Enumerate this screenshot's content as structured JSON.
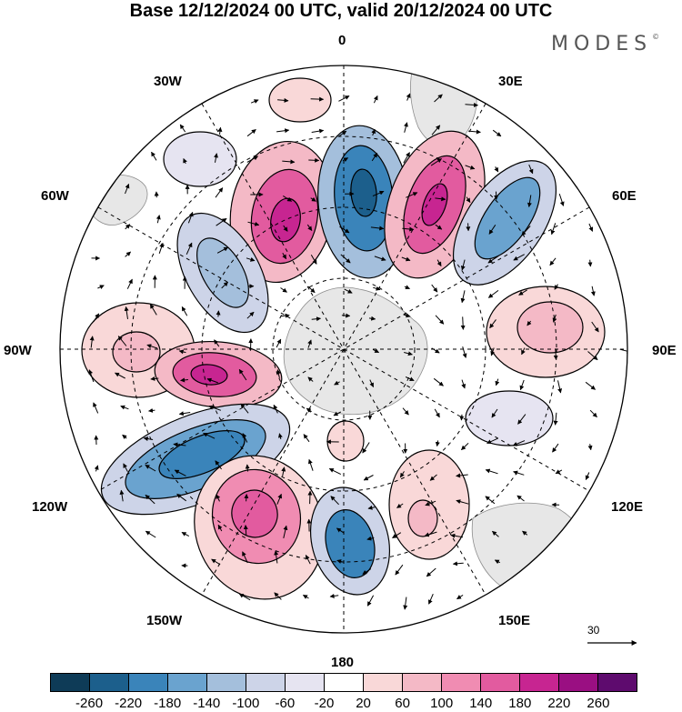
{
  "title": "Base 12/12/2024 00 UTC, valid 20/12/2024 00 UTC",
  "logo": {
    "text": "MODES",
    "mark": "©"
  },
  "longitude_labels": {
    "top": "0",
    "top_right": "30E",
    "upper_right": "60E",
    "right": "90E",
    "lower_right": "120E",
    "bottom_right": "150E",
    "bottom": "180",
    "bottom_left": "150W",
    "lower_left": "120W",
    "left": "90W",
    "upper_left": "60W",
    "top_left": "30W"
  },
  "reference_vector": {
    "label": "30"
  },
  "colorbar": {
    "colors": [
      "#0e3b57",
      "#1c5f8c",
      "#3a84ba",
      "#6aa3cf",
      "#a4bfdc",
      "#cdd4e8",
      "#e6e4f1",
      "#ffffff",
      "#f9d8d8",
      "#f4b9c6",
      "#f08cb2",
      "#e25b9f",
      "#c72591",
      "#9a0f82",
      "#5e0b6e"
    ],
    "labels": [
      "-260",
      "-220",
      "-180",
      "-140",
      "-100",
      "-60",
      "-20",
      "20",
      "60",
      "100",
      "140",
      "180",
      "220",
      "260"
    ]
  }
}
